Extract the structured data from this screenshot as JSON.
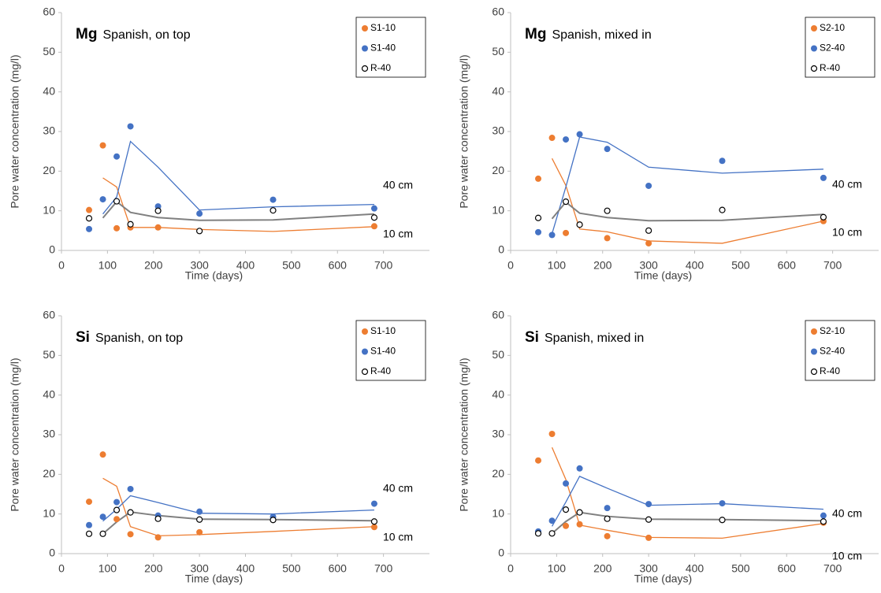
{
  "chart_data": [
    {
      "type": "scatter",
      "title": "Mg",
      "subtitle": "Spanish, on top",
      "x_label": "Time (days)",
      "y_label": "Pore water concentration (mg/l)",
      "xlim": [
        0,
        800
      ],
      "xticks": [
        0,
        100,
        200,
        300,
        400,
        500,
        600,
        700
      ],
      "ylim": [
        0,
        60
      ],
      "yticks": [
        0,
        10,
        20,
        30,
        40,
        50,
        60
      ],
      "x": [
        60,
        90,
        120,
        150,
        210,
        300,
        460,
        680
      ],
      "series": [
        {
          "name": "S1-10",
          "color": "#ED7D31",
          "line_color": "#ED7D31",
          "marker": "filled",
          "values": [
            10.2,
            26.5,
            5.6,
            5.8,
            5.8,
            null,
            null,
            6.1
          ],
          "trend": [
            null,
            18.3,
            16,
            5.8,
            5.8,
            5.3,
            4.8,
            6
          ]
        },
        {
          "name": "S1-40",
          "color": "#4472C4",
          "line_color": "#4472C4",
          "marker": "filled",
          "values": [
            5.4,
            12.9,
            23.7,
            31.3,
            11.1,
            9.3,
            12.8,
            10.6
          ],
          "trend": [
            null,
            9.2,
            13.5,
            27.5,
            21,
            10.2,
            11,
            11.6
          ]
        },
        {
          "name": "R-40",
          "color": "#000000",
          "line_color": "#808080",
          "marker": "open",
          "values": [
            8.1,
            null,
            12.4,
            6.6,
            10,
            4.9,
            10.1,
            8.3
          ],
          "trend": [
            null,
            8.2,
            12.3,
            9.6,
            8.3,
            7.6,
            7.7,
            9.2
          ]
        }
      ],
      "annotations": [
        "40 cm",
        "10 cm"
      ]
    },
    {
      "type": "scatter",
      "title": "Mg",
      "subtitle": "Spanish, mixed in",
      "x_label": "Time (days)",
      "y_label": "Pore water concentration (mg/l)",
      "xlim": [
        0,
        800
      ],
      "xticks": [
        0,
        100,
        200,
        300,
        400,
        500,
        600,
        700
      ],
      "ylim": [
        0,
        60
      ],
      "yticks": [
        0,
        10,
        20,
        30,
        40,
        50,
        60
      ],
      "x": [
        60,
        90,
        120,
        150,
        210,
        300,
        460,
        680
      ],
      "series": [
        {
          "name": "S2-10",
          "color": "#ED7D31",
          "line_color": "#ED7D31",
          "marker": "filled",
          "values": [
            18.1,
            28.4,
            4.4,
            6.5,
            3.1,
            1.8,
            null,
            7.4
          ],
          "trend": [
            null,
            23.2,
            16.4,
            5.4,
            4.7,
            2.4,
            1.8,
            7.4
          ]
        },
        {
          "name": "S2-40",
          "color": "#4472C4",
          "line_color": "#4472C4",
          "marker": "filled",
          "values": [
            4.6,
            3.9,
            28,
            29.3,
            25.6,
            16.3,
            22.6,
            18.3
          ],
          "trend": [
            null,
            4.2,
            16,
            28.6,
            27.3,
            21,
            19.5,
            20.5
          ]
        },
        {
          "name": "R-40",
          "color": "#000000",
          "line_color": "#808080",
          "marker": "open",
          "values": [
            8.2,
            null,
            12.3,
            6.5,
            10,
            5,
            10.2,
            8.4
          ],
          "trend": [
            null,
            8,
            12.2,
            9.4,
            8.3,
            7.5,
            7.6,
            9.1
          ]
        }
      ],
      "annotations": [
        "40 cm",
        "10 cm"
      ]
    },
    {
      "type": "scatter",
      "title": "Si",
      "subtitle": "Spanish, on top",
      "x_label": "Time (days)",
      "y_label": "Pore water concentration (mg/l)",
      "xlim": [
        0,
        800
      ],
      "xticks": [
        0,
        100,
        200,
        300,
        400,
        500,
        600,
        700
      ],
      "ylim": [
        0,
        60
      ],
      "yticks": [
        0,
        10,
        20,
        30,
        40,
        50,
        60
      ],
      "x": [
        60,
        90,
        120,
        150,
        210,
        300,
        460,
        680
      ],
      "series": [
        {
          "name": "S1-10",
          "color": "#ED7D31",
          "line_color": "#ED7D31",
          "marker": "filled",
          "values": [
            13.1,
            25,
            8.7,
            4.9,
            4.1,
            5.4,
            null,
            6.7
          ],
          "trend": [
            null,
            19,
            17,
            6.8,
            4.5,
            4.8,
            5.6,
            6.8
          ]
        },
        {
          "name": "S1-40",
          "color": "#4472C4",
          "line_color": "#4472C4",
          "marker": "filled",
          "values": [
            7.2,
            9.3,
            13,
            16.3,
            9.6,
            10.6,
            9.3,
            12.6
          ],
          "trend": [
            null,
            8.2,
            11.2,
            14.6,
            12.9,
            10.2,
            10,
            11
          ]
        },
        {
          "name": "R-40",
          "color": "#000000",
          "line_color": "#808080",
          "marker": "open",
          "values": [
            5,
            5,
            11,
            10.4,
            8.8,
            8.6,
            8.5,
            8.1
          ],
          "trend": [
            null,
            5,
            8,
            10.5,
            9.6,
            8.7,
            8.6,
            8.3
          ]
        }
      ],
      "annotations": [
        "40 cm",
        "10 cm"
      ]
    },
    {
      "type": "scatter",
      "title": "Si",
      "subtitle": "Spanish, mixed in",
      "x_label": "Time (days)",
      "y_label": "Pore water concentration (mg/l)",
      "xlim": [
        0,
        800
      ],
      "xticks": [
        0,
        100,
        200,
        300,
        400,
        500,
        600,
        700
      ],
      "ylim": [
        0,
        60
      ],
      "yticks": [
        0,
        10,
        20,
        30,
        40,
        50,
        60
      ],
      "x": [
        60,
        90,
        120,
        150,
        210,
        300,
        460,
        680
      ],
      "series": [
        {
          "name": "S2-10",
          "color": "#ED7D31",
          "line_color": "#ED7D31",
          "marker": "filled",
          "values": [
            23.5,
            30.2,
            7,
            7.4,
            4.4,
            4,
            null,
            7.8
          ],
          "trend": [
            null,
            26.8,
            18.7,
            7.2,
            5.9,
            4.1,
            3.9,
            7.6
          ]
        },
        {
          "name": "S2-40",
          "color": "#4472C4",
          "line_color": "#4472C4",
          "marker": "filled",
          "values": [
            5.6,
            8.3,
            17.7,
            21.5,
            11.5,
            12.5,
            12.7,
            9.6
          ],
          "trend": [
            null,
            6.9,
            13,
            19.5,
            16.5,
            12.2,
            12.6,
            11.2
          ]
        },
        {
          "name": "R-40",
          "color": "#000000",
          "line_color": "#808080",
          "marker": "open",
          "values": [
            5.1,
            5.1,
            11.1,
            10.4,
            8.8,
            8.6,
            8.5,
            8.1
          ],
          "trend": [
            null,
            5.1,
            8.1,
            10.4,
            9.4,
            8.7,
            8.6,
            8.3
          ]
        }
      ],
      "annotations": [
        "40 cm",
        "10 cm"
      ]
    }
  ]
}
